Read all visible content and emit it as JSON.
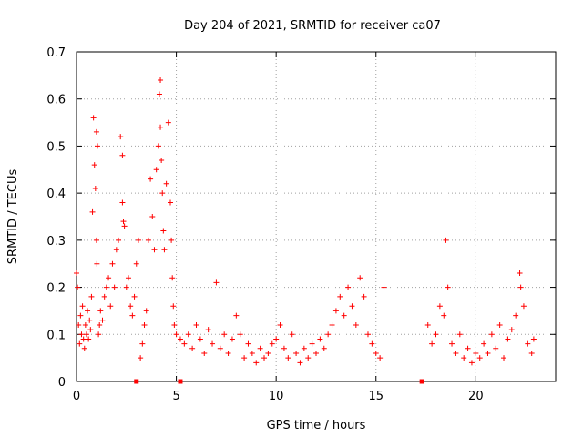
{
  "chart_data": {
    "type": "scatter",
    "title": "Day 204 of 2021, SRMTID for receiver ca07",
    "xlabel": "GPS time / hours",
    "ylabel": "SRMTID / TECUs",
    "xlim": [
      0,
      24
    ],
    "ylim": [
      0,
      0.7
    ],
    "xticks": [
      0,
      5,
      10,
      15,
      20
    ],
    "xtick_labels": [
      "0",
      "5",
      "10",
      "15",
      "20"
    ],
    "yticks": [
      0,
      0.1,
      0.2,
      0.3,
      0.4,
      0.5,
      0.6,
      0.7
    ],
    "ytick_labels": [
      "0",
      "0.1",
      "0.2",
      "0.3",
      "0.4",
      "0.5",
      "0.6",
      "0.7"
    ],
    "grid": true,
    "marker": "+",
    "color": "#ff0000",
    "series": [
      {
        "name": "SRMTID",
        "x": [
          0.0,
          0.05,
          0.1,
          0.15,
          0.2,
          0.25,
          0.3,
          0.35,
          0.4,
          0.45,
          0.5,
          0.55,
          0.6,
          0.65,
          0.7,
          0.75,
          0.8,
          0.85,
          0.9,
          0.95,
          1.0,
          1.0,
          1.02,
          1.05,
          1.1,
          1.15,
          1.2,
          1.3,
          1.4,
          1.5,
          1.6,
          1.7,
          1.8,
          1.9,
          2.0,
          2.1,
          2.2,
          2.3,
          2.3,
          2.35,
          2.4,
          2.5,
          2.6,
          2.7,
          2.8,
          2.9,
          3.0,
          3.1,
          3.2,
          3.3,
          3.4,
          3.5,
          3.6,
          3.7,
          3.8,
          3.9,
          4.0,
          4.1,
          4.15,
          4.2,
          4.2,
          4.25,
          4.3,
          4.35,
          4.4,
          4.5,
          4.6,
          4.7,
          4.75,
          4.8,
          4.85,
          4.9,
          5.0,
          5.2,
          5.4,
          5.6,
          5.8,
          6.0,
          6.2,
          6.4,
          6.6,
          6.8,
          7.0,
          7.2,
          7.4,
          7.6,
          7.8,
          8.0,
          8.2,
          8.4,
          8.6,
          8.8,
          9.0,
          9.2,
          9.4,
          9.6,
          9.8,
          10.0,
          10.2,
          10.4,
          10.6,
          10.8,
          11.0,
          11.2,
          11.4,
          11.6,
          11.8,
          12.0,
          12.2,
          12.4,
          12.6,
          12.8,
          13.0,
          13.2,
          13.4,
          13.6,
          13.8,
          14.0,
          14.2,
          14.4,
          14.6,
          14.8,
          15.0,
          15.2,
          15.4,
          17.6,
          17.8,
          18.0,
          18.2,
          18.4,
          18.5,
          18.6,
          18.8,
          19.0,
          19.2,
          19.4,
          19.6,
          19.8,
          20.0,
          20.2,
          20.4,
          20.6,
          20.8,
          21.0,
          21.2,
          21.4,
          21.6,
          21.8,
          22.0,
          22.2,
          22.25,
          22.4,
          22.6,
          22.8,
          22.9
        ],
        "y": [
          0.23,
          0.2,
          0.12,
          0.08,
          0.14,
          0.1,
          0.16,
          0.09,
          0.07,
          0.12,
          0.1,
          0.15,
          0.09,
          0.13,
          0.11,
          0.18,
          0.36,
          0.56,
          0.46,
          0.41,
          0.53,
          0.3,
          0.25,
          0.5,
          0.1,
          0.12,
          0.15,
          0.13,
          0.18,
          0.2,
          0.22,
          0.16,
          0.25,
          0.2,
          0.28,
          0.3,
          0.52,
          0.48,
          0.38,
          0.34,
          0.33,
          0.2,
          0.22,
          0.16,
          0.14,
          0.18,
          0.25,
          0.3,
          0.05,
          0.08,
          0.12,
          0.15,
          0.3,
          0.43,
          0.35,
          0.28,
          0.45,
          0.5,
          0.61,
          0.64,
          0.54,
          0.47,
          0.4,
          0.32,
          0.28,
          0.42,
          0.55,
          0.38,
          0.3,
          0.22,
          0.16,
          0.12,
          0.1,
          0.09,
          0.08,
          0.1,
          0.07,
          0.12,
          0.09,
          0.06,
          0.11,
          0.08,
          0.21,
          0.07,
          0.1,
          0.06,
          0.09,
          0.14,
          0.1,
          0.05,
          0.08,
          0.06,
          0.04,
          0.07,
          0.05,
          0.06,
          0.08,
          0.09,
          0.12,
          0.07,
          0.05,
          0.1,
          0.06,
          0.04,
          0.07,
          0.05,
          0.08,
          0.06,
          0.09,
          0.07,
          0.1,
          0.12,
          0.15,
          0.18,
          0.14,
          0.2,
          0.16,
          0.12,
          0.22,
          0.18,
          0.1,
          0.08,
          0.06,
          0.05,
          0.2,
          0.12,
          0.08,
          0.1,
          0.16,
          0.14,
          0.3,
          0.2,
          0.08,
          0.06,
          0.1,
          0.05,
          0.07,
          0.04,
          0.06,
          0.05,
          0.08,
          0.06,
          0.1,
          0.07,
          0.12,
          0.05,
          0.09,
          0.11,
          0.14,
          0.23,
          0.2,
          0.16,
          0.08,
          0.06,
          0.09
        ],
        "gap_markers_x": [
          3.0,
          5.2,
          17.3
        ]
      }
    ]
  }
}
